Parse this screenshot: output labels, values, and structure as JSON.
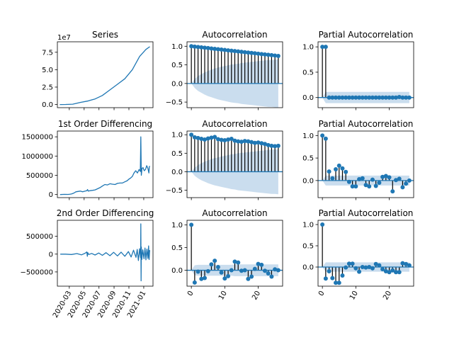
{
  "figure": {
    "background": "#ffffff",
    "line_color": "#1f77b4",
    "stem_color": "#000000",
    "ci_fill": "#a6c6e3",
    "ci_opacity": 0.6
  },
  "chart_data": [
    {
      "type": "line",
      "title": "Series",
      "offset_label": "1e7",
      "xlabel": "",
      "ylabel": "",
      "x_is_date": true,
      "xlim": [
        "2020-01-12",
        "2021-02-08"
      ],
      "ylim": [
        -0.45,
        9.0
      ],
      "y_ticks": [
        0,
        2.5,
        5,
        7.5
      ],
      "y_tick_labels": [
        "0.0",
        "2.5",
        "5.0",
        "7.5"
      ],
      "series": [
        {
          "x": [
            "2020-01-22",
            "2020-02-15",
            "2020-03-15",
            "2020-04-15",
            "2020-05-15",
            "2020-06-15",
            "2020-07-15",
            "2020-08-15",
            "2020-09-15",
            "2020-10-15",
            "2020-11-15",
            "2020-12-15",
            "2021-01-10",
            "2021-01-26"
          ],
          "values": [
            0.0,
            0.01,
            0.05,
            0.3,
            0.5,
            0.8,
            1.3,
            2.1,
            2.9,
            3.7,
            5.0,
            6.9,
            7.9,
            8.3
          ]
        }
      ]
    },
    {
      "type": "stem",
      "title": "Autocorrelation",
      "xlim": [
        -1.3,
        27.3
      ],
      "ylim": [
        -0.65,
        1.12
      ],
      "y_ticks": [
        -0.5,
        0.0,
        0.5,
        1.0
      ],
      "y_tick_labels": [
        "−0.5",
        "0.0",
        "0.5",
        "1.0"
      ],
      "lags": [
        0,
        1,
        2,
        3,
        4,
        5,
        6,
        7,
        8,
        9,
        10,
        11,
        12,
        13,
        14,
        15,
        16,
        17,
        18,
        19,
        20,
        21,
        22,
        23,
        24,
        25,
        26
      ],
      "values": [
        1.0,
        0.99,
        0.98,
        0.97,
        0.96,
        0.95,
        0.94,
        0.93,
        0.92,
        0.91,
        0.9,
        0.89,
        0.88,
        0.87,
        0.86,
        0.85,
        0.84,
        0.83,
        0.82,
        0.81,
        0.8,
        0.79,
        0.78,
        0.77,
        0.76,
        0.75,
        0.74
      ],
      "conf_band": [
        0.0,
        0.12,
        0.2,
        0.25,
        0.3,
        0.34,
        0.37,
        0.4,
        0.43,
        0.45,
        0.47,
        0.49,
        0.51,
        0.52,
        0.53,
        0.55,
        0.56,
        0.57,
        0.58,
        0.59,
        0.6,
        0.61,
        0.62,
        0.63,
        0.63,
        0.64,
        0.65
      ]
    },
    {
      "type": "stem",
      "title": "Partial Autocorrelation",
      "xlim": [
        -1.3,
        27.3
      ],
      "ylim": [
        -0.2,
        1.1
      ],
      "y_ticks": [
        0.0,
        0.5,
        1.0
      ],
      "y_tick_labels": [
        "0.0",
        "0.5",
        "1.0"
      ],
      "lags": [
        0,
        1,
        2,
        3,
        4,
        5,
        6,
        7,
        8,
        9,
        10,
        11,
        12,
        13,
        14,
        15,
        16,
        17,
        18,
        19,
        20,
        21,
        22,
        23,
        24,
        25,
        26
      ],
      "values": [
        1.0,
        1.0,
        0.0,
        0.0,
        0.0,
        0.0,
        0.0,
        0.0,
        0.0,
        0.0,
        0.0,
        0.0,
        0.0,
        0.0,
        0.0,
        0.0,
        0.0,
        0.0,
        0.0,
        0.0,
        0.0,
        0.0,
        0.0,
        0.01,
        0.0,
        0.0,
        0.0
      ],
      "conf_band": [
        0.0,
        0.11,
        0.11,
        0.11,
        0.11,
        0.11,
        0.11,
        0.11,
        0.11,
        0.11,
        0.11,
        0.11,
        0.11,
        0.11,
        0.11,
        0.11,
        0.11,
        0.11,
        0.11,
        0.11,
        0.11,
        0.11,
        0.11,
        0.11,
        0.11,
        0.11,
        0.11
      ]
    },
    {
      "type": "line",
      "title": "1st Order Differencing",
      "offset_label": "",
      "x_is_date": true,
      "xlim": [
        "2020-01-12",
        "2021-02-08"
      ],
      "ylim": [
        -80000,
        1650000
      ],
      "y_ticks": [
        0,
        500000,
        1000000,
        1500000
      ],
      "y_tick_labels": [
        "0",
        "500000",
        "1000000",
        "1500000"
      ],
      "series": [
        {
          "x": [
            "2020-01-23",
            "2020-02-10",
            "2020-02-25",
            "2020-03-05",
            "2020-03-12",
            "2020-03-20",
            "2020-03-28",
            "2020-04-05",
            "2020-04-15",
            "2020-04-25",
            "2020-05-05",
            "2020-05-12",
            "2020-05-15",
            "2020-05-18",
            "2020-05-25",
            "2020-06-05",
            "2020-06-15",
            "2020-06-25",
            "2020-07-05",
            "2020-07-15",
            "2020-07-25",
            "2020-08-05",
            "2020-08-15",
            "2020-08-25",
            "2020-09-05",
            "2020-09-15",
            "2020-09-25",
            "2020-10-05",
            "2020-10-15",
            "2020-10-25",
            "2020-11-01",
            "2020-11-08",
            "2020-11-15",
            "2020-11-22",
            "2020-11-29",
            "2020-12-06",
            "2020-12-13",
            "2020-12-18",
            "2020-12-20",
            "2020-12-22",
            "2020-12-25",
            "2020-12-29",
            "2021-01-03",
            "2021-01-08",
            "2021-01-13",
            "2021-01-18",
            "2021-01-22",
            "2021-01-24",
            "2021-01-26"
          ],
          "values": [
            0,
            5000,
            2000,
            10000,
            20000,
            40000,
            70000,
            80000,
            90000,
            70000,
            90000,
            100000,
            130000,
            90000,
            100000,
            110000,
            120000,
            150000,
            180000,
            220000,
            260000,
            250000,
            280000,
            270000,
            260000,
            290000,
            300000,
            300000,
            330000,
            360000,
            400000,
            430000,
            470000,
            560000,
            620000,
            560000,
            650000,
            600000,
            1500000,
            500000,
            680000,
            700000,
            620000,
            650000,
            750000,
            680000,
            560000,
            720000,
            740000
          ]
        }
      ]
    },
    {
      "type": "stem",
      "title": "Autocorrelation",
      "xlim": [
        -1.3,
        27.3
      ],
      "ylim": [
        -0.7,
        1.1
      ],
      "y_ticks": [
        -0.5,
        0.0,
        0.5,
        1.0
      ],
      "y_tick_labels": [
        "−0.5",
        "0.0",
        "0.5",
        "1.0"
      ],
      "lags": [
        0,
        1,
        2,
        3,
        4,
        5,
        6,
        7,
        8,
        9,
        10,
        11,
        12,
        13,
        14,
        15,
        16,
        17,
        18,
        19,
        20,
        21,
        22,
        23,
        24,
        25,
        26
      ],
      "values": [
        1.0,
        0.93,
        0.91,
        0.89,
        0.87,
        0.9,
        0.92,
        0.94,
        0.88,
        0.86,
        0.85,
        0.87,
        0.89,
        0.84,
        0.82,
        0.81,
        0.83,
        0.82,
        0.8,
        0.78,
        0.79,
        0.77,
        0.75,
        0.72,
        0.7,
        0.69,
        0.7
      ],
      "conf_band": [
        0.0,
        0.11,
        0.18,
        0.23,
        0.27,
        0.31,
        0.34,
        0.37,
        0.39,
        0.41,
        0.43,
        0.45,
        0.47,
        0.48,
        0.5,
        0.51,
        0.52,
        0.53,
        0.54,
        0.55,
        0.56,
        0.57,
        0.58,
        0.59,
        0.6,
        0.6,
        0.61
      ]
    },
    {
      "type": "stem",
      "title": "Partial Autocorrelation",
      "xlim": [
        -1.3,
        27.3
      ],
      "ylim": [
        -0.38,
        1.1
      ],
      "y_ticks": [
        0.0,
        0.5,
        1.0
      ],
      "y_tick_labels": [
        "0.0",
        "0.5",
        "1.0"
      ],
      "lags": [
        0,
        1,
        2,
        3,
        4,
        5,
        6,
        7,
        8,
        9,
        10,
        11,
        12,
        13,
        14,
        15,
        16,
        17,
        18,
        19,
        20,
        21,
        22,
        23,
        24,
        25,
        26
      ],
      "values": [
        1.0,
        0.93,
        0.2,
        0.05,
        0.25,
        0.33,
        0.27,
        0.19,
        -0.03,
        -0.13,
        -0.13,
        0.03,
        0.05,
        -0.1,
        -0.13,
        0.02,
        -0.12,
        -0.05,
        0.08,
        0.1,
        0.07,
        -0.24,
        0.01,
        0.04,
        -0.15,
        -0.07,
        0.0
      ],
      "conf_band": [
        0.0,
        0.11,
        0.11,
        0.11,
        0.11,
        0.11,
        0.11,
        0.11,
        0.11,
        0.11,
        0.11,
        0.11,
        0.11,
        0.11,
        0.11,
        0.11,
        0.11,
        0.11,
        0.11,
        0.11,
        0.11,
        0.11,
        0.11,
        0.11,
        0.11,
        0.11,
        0.11
      ]
    },
    {
      "type": "line",
      "title": "2nd Order Differencing",
      "offset_label": "",
      "x_is_date": true,
      "xlim": [
        "2020-01-12",
        "2021-02-08"
      ],
      "ylim": [
        -900000,
        950000
      ],
      "y_ticks": [
        -500000,
        0,
        500000
      ],
      "y_tick_labels": [
        "−500000",
        "0",
        "500000"
      ],
      "x_ticks": [
        "2020-03-01",
        "2020-05-01",
        "2020-07-01",
        "2020-09-01",
        "2020-11-01",
        "2021-01-01"
      ],
      "x_tick_labels": [
        "2020-03",
        "2020-05",
        "2020-07",
        "2020-09",
        "2020-11",
        "2021-01"
      ],
      "series": [
        {
          "x": [
            "2020-01-24",
            "2020-02-15",
            "2020-03-10",
            "2020-04-01",
            "2020-04-20",
            "2020-05-05",
            "2020-05-12",
            "2020-05-14",
            "2020-05-16",
            "2020-05-20",
            "2020-06-01",
            "2020-06-15",
            "2020-06-30",
            "2020-07-15",
            "2020-07-30",
            "2020-08-15",
            "2020-08-30",
            "2020-09-15",
            "2020-09-30",
            "2020-10-15",
            "2020-10-30",
            "2020-11-10",
            "2020-11-20",
            "2020-11-30",
            "2020-12-05",
            "2020-12-10",
            "2020-12-15",
            "2020-12-19",
            "2020-12-20",
            "2020-12-21",
            "2020-12-22",
            "2020-12-24",
            "2020-12-28",
            "2021-01-02",
            "2021-01-06",
            "2021-01-10",
            "2021-01-14",
            "2021-01-18",
            "2021-01-21",
            "2021-01-23",
            "2021-01-25",
            "2021-01-26"
          ],
          "values": [
            0,
            0,
            -10000,
            15000,
            -20000,
            25000,
            60000,
            -60000,
            40000,
            -10000,
            20000,
            -25000,
            30000,
            -35000,
            40000,
            -45000,
            50000,
            -50000,
            55000,
            -60000,
            70000,
            -80000,
            110000,
            -90000,
            130000,
            -180000,
            150000,
            -100000,
            850000,
            -750000,
            200000,
            -150000,
            120000,
            -130000,
            170000,
            -160000,
            140000,
            -120000,
            230000,
            -150000,
            100000,
            80000
          ]
        }
      ]
    },
    {
      "type": "stem",
      "title": "Autocorrelation",
      "xlim": [
        -1.3,
        27.3
      ],
      "ylim": [
        -0.35,
        1.1
      ],
      "y_ticks": [
        0.0,
        0.5,
        1.0
      ],
      "y_tick_labels": [
        "0.0",
        "0.5",
        "1.0"
      ],
      "x_ticks": [
        0,
        10,
        20
      ],
      "x_tick_labels": [
        "0",
        "10",
        "20"
      ],
      "lags": [
        0,
        1,
        2,
        3,
        4,
        5,
        6,
        7,
        8,
        9,
        10,
        11,
        12,
        13,
        14,
        15,
        16,
        17,
        18,
        19,
        20,
        21,
        22,
        23,
        24,
        25,
        26
      ],
      "values": [
        1.0,
        -0.27,
        -0.03,
        -0.19,
        -0.17,
        -0.02,
        0.13,
        0.21,
        0.07,
        -0.05,
        -0.18,
        -0.13,
        0.0,
        0.19,
        0.17,
        -0.01,
        0.0,
        -0.19,
        -0.14,
        0.03,
        0.14,
        0.12,
        -0.01,
        -0.07,
        -0.14,
        0.02,
        0.0
      ],
      "conf_band": [
        0.0,
        0.11,
        0.12,
        0.12,
        0.12,
        0.12,
        0.12,
        0.12,
        0.12,
        0.12,
        0.12,
        0.12,
        0.12,
        0.13,
        0.13,
        0.13,
        0.13,
        0.13,
        0.13,
        0.13,
        0.13,
        0.13,
        0.13,
        0.13,
        0.13,
        0.13,
        0.13
      ]
    },
    {
      "type": "stem",
      "title": "Partial Autocorrelation",
      "xlim": [
        -1.3,
        27.3
      ],
      "ylim": [
        -0.45,
        1.1
      ],
      "y_ticks": [
        0.0,
        0.5,
        1.0
      ],
      "y_tick_labels": [
        "0.0",
        "0.5",
        "1.0"
      ],
      "x_ticks": [
        0,
        10,
        20
      ],
      "x_tick_labels": [
        "0",
        "10",
        "20"
      ],
      "lags": [
        0,
        1,
        2,
        3,
        4,
        5,
        6,
        7,
        8,
        9,
        10,
        11,
        12,
        13,
        14,
        15,
        16,
        17,
        18,
        19,
        20,
        21,
        22,
        23,
        24,
        25,
        26
      ],
      "values": [
        1.0,
        -0.27,
        -0.1,
        -0.26,
        -0.37,
        -0.37,
        -0.2,
        -0.01,
        0.08,
        0.08,
        -0.03,
        -0.11,
        0.0,
        -0.01,
        0.0,
        -0.03,
        0.07,
        0.04,
        -0.05,
        -0.1,
        -0.12,
        -0.08,
        -0.12,
        -0.12,
        0.09,
        0.07,
        0.04
      ],
      "conf_band": [
        0.0,
        0.11,
        0.11,
        0.11,
        0.11,
        0.11,
        0.11,
        0.11,
        0.11,
        0.11,
        0.11,
        0.11,
        0.11,
        0.11,
        0.11,
        0.11,
        0.11,
        0.11,
        0.11,
        0.11,
        0.11,
        0.11,
        0.11,
        0.11,
        0.11,
        0.11,
        0.11
      ]
    }
  ]
}
